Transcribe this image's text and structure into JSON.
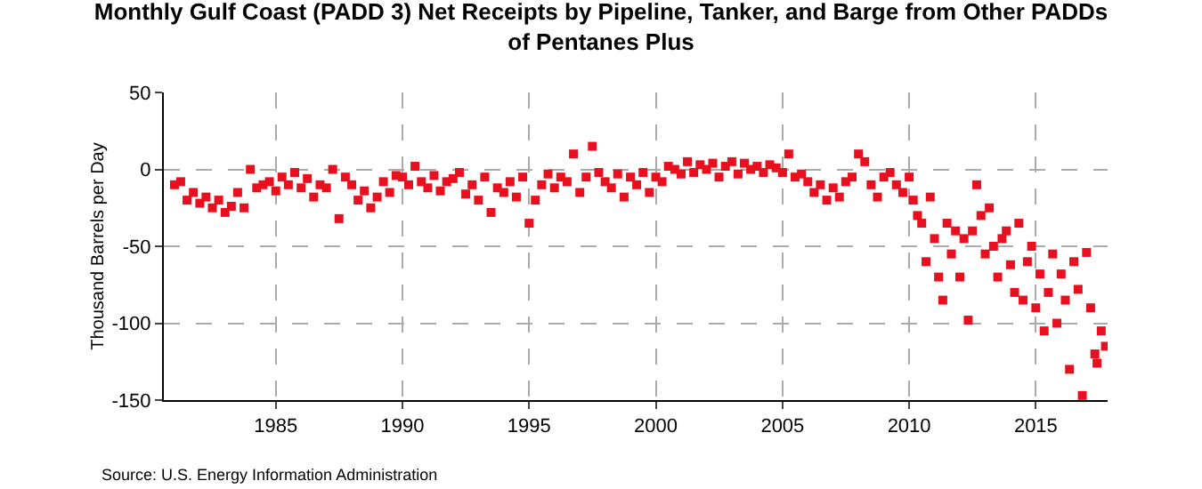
{
  "chart_data": {
    "type": "scatter",
    "title": "Monthly Gulf Coast (PADD 3) Net Receipts by Pipeline, Tanker, and Barge from Other PADDs of Pentanes Plus",
    "ylabel": "Thousand Barrels per Day",
    "annotations": [
      "Source: U.S. Energy Information Administration"
    ],
    "x": [
      "1981-01",
      "1981-04",
      "1981-07",
      "1981-10",
      "1982-01",
      "1982-04",
      "1982-07",
      "1982-10",
      "1983-01",
      "1983-04",
      "1983-07",
      "1983-10",
      "1984-01",
      "1984-04",
      "1984-07",
      "1984-10",
      "1985-01",
      "1985-04",
      "1985-07",
      "1985-10",
      "1986-01",
      "1986-04",
      "1986-07",
      "1986-10",
      "1987-01",
      "1987-04",
      "1987-07",
      "1987-10",
      "1988-01",
      "1988-04",
      "1988-07",
      "1988-10",
      "1989-01",
      "1989-04",
      "1989-07",
      "1989-10",
      "1990-01",
      "1990-04",
      "1990-07",
      "1990-10",
      "1991-01",
      "1991-04",
      "1991-07",
      "1991-10",
      "1992-01",
      "1992-04",
      "1992-07",
      "1992-10",
      "1993-01",
      "1993-04",
      "1993-07",
      "1993-10",
      "1994-01",
      "1994-04",
      "1994-07",
      "1994-10",
      "1995-01",
      "1995-04",
      "1995-07",
      "1995-10",
      "1996-01",
      "1996-04",
      "1996-07",
      "1996-10",
      "1997-01",
      "1997-04",
      "1997-07",
      "1997-10",
      "1998-01",
      "1998-04",
      "1998-07",
      "1998-10",
      "1999-01",
      "1999-04",
      "1999-07",
      "1999-10",
      "2000-01",
      "2000-04",
      "2000-07",
      "2000-10",
      "2001-01",
      "2001-04",
      "2001-07",
      "2001-10",
      "2002-01",
      "2002-04",
      "2002-07",
      "2002-10",
      "2003-01",
      "2003-04",
      "2003-07",
      "2003-10",
      "2004-01",
      "2004-04",
      "2004-07",
      "2004-10",
      "2005-01",
      "2005-04",
      "2005-07",
      "2005-10",
      "2006-01",
      "2006-04",
      "2006-07",
      "2006-10",
      "2007-01",
      "2007-04",
      "2007-07",
      "2007-10",
      "2008-01",
      "2008-04",
      "2008-07",
      "2008-10",
      "2009-01",
      "2009-04",
      "2009-07",
      "2009-10",
      "2010-01",
      "2010-03",
      "2010-05",
      "2010-07",
      "2010-09",
      "2010-11",
      "2011-01",
      "2011-03",
      "2011-05",
      "2011-07",
      "2011-09",
      "2011-11",
      "2012-01",
      "2012-03",
      "2012-05",
      "2012-07",
      "2012-09",
      "2012-11",
      "2013-01",
      "2013-03",
      "2013-05",
      "2013-07",
      "2013-09",
      "2013-11",
      "2014-01",
      "2014-03",
      "2014-05",
      "2014-07",
      "2014-09",
      "2014-11",
      "2015-01",
      "2015-03",
      "2015-05",
      "2015-07",
      "2015-09",
      "2015-11",
      "2016-01",
      "2016-03",
      "2016-05",
      "2016-07",
      "2016-09",
      "2016-11",
      "2017-01",
      "2017-03",
      "2017-05",
      "2017-06",
      "2017-08",
      "2017-10"
    ],
    "values": [
      -10,
      -8,
      -20,
      -15,
      -22,
      -18,
      -25,
      -20,
      -28,
      -24,
      -15,
      -25,
      0,
      -12,
      -10,
      -8,
      -14,
      -5,
      -10,
      -2,
      -12,
      -6,
      -18,
      -10,
      -12,
      0,
      -32,
      -5,
      -10,
      -20,
      -14,
      -25,
      -18,
      -8,
      -15,
      -4,
      -5,
      -10,
      2,
      -8,
      -12,
      -4,
      -14,
      -8,
      -6,
      -2,
      -16,
      -10,
      -20,
      -5,
      -28,
      -12,
      -15,
      -8,
      -18,
      -5,
      -35,
      -20,
      -10,
      -3,
      -12,
      -5,
      -8,
      10,
      -15,
      -5,
      15,
      -2,
      -8,
      -12,
      -3,
      -18,
      -5,
      -10,
      -2,
      -15,
      -5,
      -8,
      2,
      0,
      -3,
      5,
      -2,
      3,
      0,
      4,
      -5,
      2,
      5,
      -3,
      4,
      0,
      2,
      -2,
      3,
      1,
      -2,
      10,
      -5,
      -3,
      -8,
      -15,
      -10,
      -20,
      -12,
      -18,
      -8,
      -5,
      10,
      5,
      -10,
      -18,
      -5,
      -2,
      -10,
      -15,
      -5,
      -20,
      -30,
      -35,
      -60,
      -18,
      -45,
      -70,
      -85,
      -35,
      -55,
      -40,
      -70,
      -45,
      -98,
      -40,
      -10,
      -30,
      -55,
      -25,
      -50,
      -70,
      -45,
      -40,
      -62,
      -80,
      -35,
      -85,
      -60,
      -50,
      -90,
      -68,
      -105,
      -80,
      -55,
      -100,
      -68,
      -85,
      -130,
      -60,
      -78,
      -147,
      -54,
      -90,
      -120,
      -126,
      -105,
      -115
    ],
    "color": "#e8101e",
    "marker": "square",
    "ylim": [
      -150,
      50
    ],
    "yticks": [
      -150,
      -100,
      -50,
      0,
      50
    ],
    "xlim": [
      "1980-08",
      "2017-11"
    ],
    "xticks": [
      {
        "value": "1985-01",
        "label": "1985"
      },
      {
        "value": "1990-01",
        "label": "1990"
      },
      {
        "value": "1995-01",
        "label": "1995"
      },
      {
        "value": "2000-01",
        "label": "2000"
      },
      {
        "value": "2005-01",
        "label": "2005"
      },
      {
        "value": "2010-01",
        "label": "2010"
      },
      {
        "value": "2015-01",
        "label": "2015"
      }
    ],
    "grid": true
  }
}
